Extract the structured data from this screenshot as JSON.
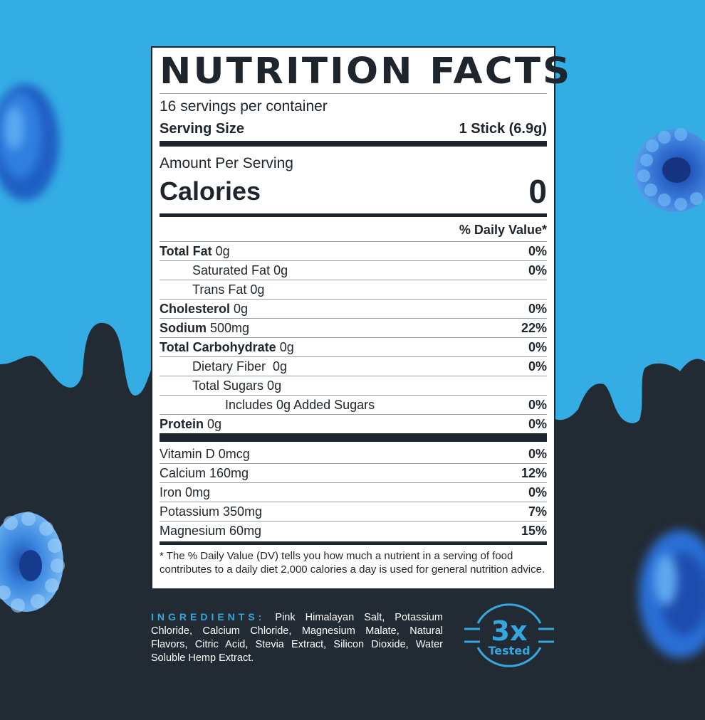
{
  "colors": {
    "sky": "#34ade5",
    "navy": "#222a33",
    "label_ink": "#1e252d",
    "accent": "#35a6de",
    "berry_blue": "#3b8fe0"
  },
  "nutrition": {
    "title": "NUTRITION FACTS",
    "servings": "16 servings per container",
    "serving_size_label": "Serving Size",
    "serving_size_value": "1 Stick (6.9g)",
    "amount_label": "Amount Per Serving",
    "calories_label": "Calories",
    "calories_value": "0",
    "dv_header": "% Daily Value*",
    "nutrients": [
      {
        "bold": "Total Fat",
        "rest": " 0g",
        "dv": "0%"
      },
      {
        "bold": "",
        "rest": "Saturated Fat 0g",
        "dv": "0%"
      },
      {
        "bold": "",
        "rest": "Trans Fat 0g",
        "dv": ""
      },
      {
        "bold": "Cholesterol",
        "rest": " 0g",
        "dv": "0%"
      },
      {
        "bold": "Sodium",
        "rest": " 500mg",
        "dv": "22%"
      },
      {
        "bold": "Total Carbohydrate",
        "rest": " 0g",
        "dv": "0%"
      },
      {
        "bold": "",
        "rest": "Dietary Fiber  0g",
        "dv": "0%"
      },
      {
        "bold": "",
        "rest": "Total Sugars 0g",
        "dv": ""
      },
      {
        "bold": "",
        "rest": "Includes 0g Added Sugars",
        "dv": "0%"
      },
      {
        "bold": "Protein",
        "rest": " 0g",
        "dv": "0%"
      }
    ],
    "vitamins": [
      {
        "name": "Vitamin D 0mcg",
        "dv": "0%"
      },
      {
        "name": "Calcium 160mg",
        "dv": "12%"
      },
      {
        "name": "Iron 0mg",
        "dv": "0%"
      },
      {
        "name": "Potassium 350mg",
        "dv": "7%"
      },
      {
        "name": "Magnesium 60mg",
        "dv": "15%"
      }
    ],
    "footnote": "* The % Daily Value (DV) tells you how much a  nutrient in a serving of food contributes to a daily diet 2,000 calories a day is used for general nutrition advice."
  },
  "ingredients": {
    "label": "INGREDIENTS:",
    "text": "Pink Himalayan Salt, Potassium Chloride, Calcium Chloride, Magnesium Malate, Natural Flavors, Citric Acid, Stevia Extract, Silicon Dioxide, Water Soluble Hemp Extract."
  },
  "badge": {
    "number": "3x",
    "text": "Tested"
  }
}
